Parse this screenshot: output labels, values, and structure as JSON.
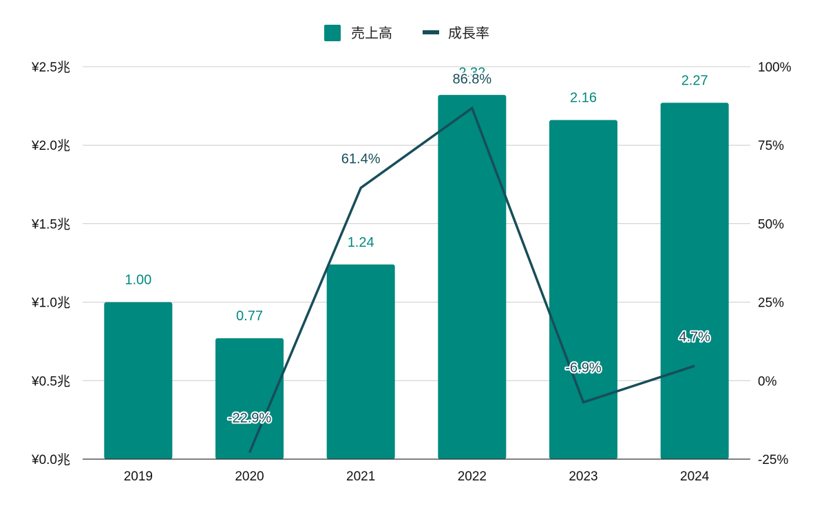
{
  "chart_data": {
    "type": "bar",
    "categories": [
      "2019",
      "2020",
      "2021",
      "2022",
      "2023",
      "2024"
    ],
    "series": [
      {
        "name": "売上高",
        "kind": "bar",
        "axis": "left",
        "color": "#00897f",
        "values": [
          1.0,
          0.77,
          1.24,
          2.32,
          2.16,
          2.27
        ],
        "labels": [
          "1.00",
          "0.77",
          "1.24",
          "2.32",
          "2.16",
          "2.27"
        ]
      },
      {
        "name": "成長率",
        "kind": "line",
        "axis": "right",
        "color": "#174e5a",
        "values": [
          null,
          -22.9,
          61.4,
          86.8,
          -6.9,
          4.7
        ],
        "labels": [
          "",
          "-22.9%",
          "61.4%",
          "86.8%",
          "-6.9%",
          "4.7%"
        ]
      }
    ],
    "y_left": {
      "ylim": [
        0,
        2.5
      ],
      "ticks": [
        0,
        0.5,
        1.0,
        1.5,
        2.0,
        2.5
      ],
      "tick_labels": [
        "¥0.0兆",
        "¥0.5兆",
        "¥1.0兆",
        "¥1.5兆",
        "¥2.0兆",
        "¥2.5兆"
      ]
    },
    "y_right": {
      "ylim": [
        -25,
        100
      ],
      "ticks": [
        -25,
        0,
        25,
        50,
        75,
        100
      ],
      "tick_labels": [
        "-25%",
        "0%",
        "25%",
        "50%",
        "75%",
        "100%"
      ]
    },
    "grid": true,
    "legend": "top-center"
  }
}
